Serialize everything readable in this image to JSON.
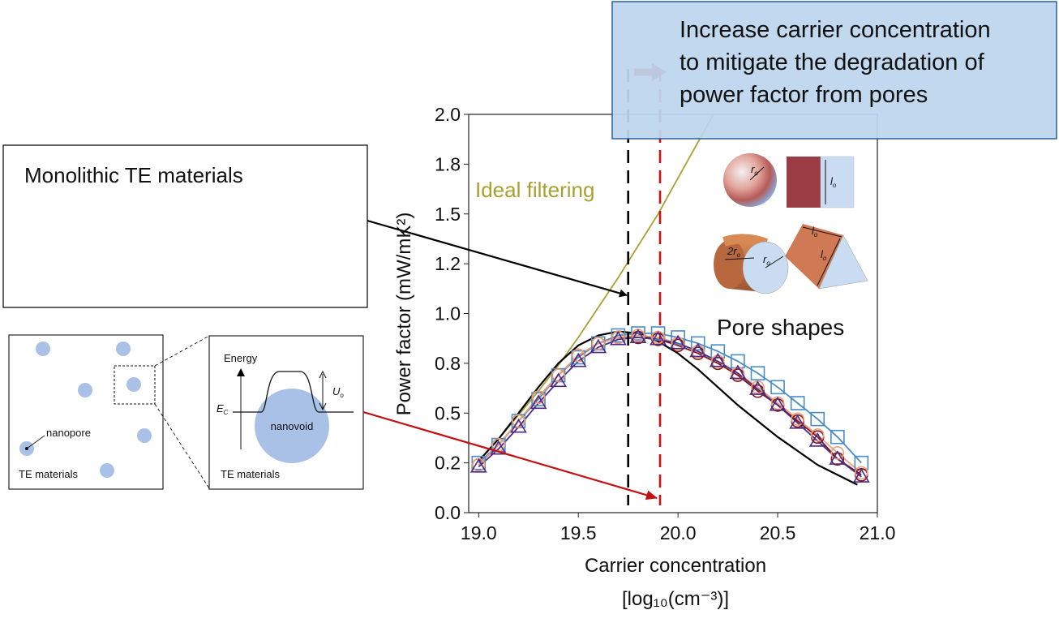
{
  "chart_data": {
    "type": "line",
    "xlabel": "Carrier concentration",
    "xlabel_unit": "[log₁₀(cm⁻³)]",
    "ylabel": "Power factor (mW/mK²)",
    "xlim": [
      18.95,
      21.0
    ],
    "ylim": [
      0.0,
      2.0
    ],
    "x_ticks": [
      "19.0",
      "19.5",
      "20.0",
      "20.5",
      "21.0"
    ],
    "y_ticks": [
      "0.0",
      "0.2",
      "0.5",
      "0.8",
      "1.0",
      "1.2",
      "1.5",
      "1.8",
      "2.0"
    ],
    "grid": false,
    "markers_x": [
      19.0,
      19.1,
      19.2,
      19.3,
      19.4,
      19.5,
      19.6,
      19.7,
      19.8,
      19.9,
      20.0,
      20.1,
      20.2,
      20.3,
      20.4,
      20.5,
      20.6,
      20.7,
      20.8,
      20.92
    ],
    "series": [
      {
        "name": "Ideal filtering",
        "color": "#a8a030",
        "x": [
          19.0,
          19.1,
          19.2,
          19.3,
          19.4,
          19.5,
          19.6,
          19.7,
          19.8,
          19.9,
          20.0,
          20.1,
          20.2
        ],
        "values": [
          0.26,
          0.37,
          0.49,
          0.61,
          0.74,
          0.88,
          1.03,
          1.18,
          1.34,
          1.5,
          1.68,
          1.86,
          2.04
        ]
      },
      {
        "name": "",
        "color": "#000000",
        "x": [
          19.0,
          19.1,
          19.2,
          19.3,
          19.4,
          19.5,
          19.6,
          19.7,
          19.8,
          19.9,
          20.0,
          20.1,
          20.2,
          20.3,
          20.4,
          20.5,
          20.6,
          20.7,
          20.8,
          20.9
        ],
        "values": [
          0.26,
          0.37,
          0.5,
          0.63,
          0.75,
          0.84,
          0.89,
          0.91,
          0.9,
          0.86,
          0.8,
          0.72,
          0.63,
          0.54,
          0.46,
          0.38,
          0.31,
          0.24,
          0.19,
          0.14
        ]
      },
      {
        "name": "",
        "color": "#4a8cc4",
        "marker": "square",
        "x": [
          19.0,
          19.1,
          19.2,
          19.3,
          19.4,
          19.5,
          19.6,
          19.7,
          19.8,
          19.9,
          20.0,
          20.1,
          20.2,
          20.3,
          20.4,
          20.5,
          20.6,
          20.7,
          20.8,
          20.92
        ],
        "values": [
          0.25,
          0.34,
          0.46,
          0.57,
          0.69,
          0.78,
          0.85,
          0.89,
          0.9,
          0.9,
          0.88,
          0.85,
          0.81,
          0.76,
          0.7,
          0.63,
          0.55,
          0.47,
          0.38,
          0.25
        ]
      },
      {
        "name": "",
        "color": "#8b1010",
        "marker": "circle",
        "x": [
          19.0,
          19.1,
          19.2,
          19.3,
          19.4,
          19.5,
          19.6,
          19.7,
          19.8,
          19.9,
          20.0,
          20.1,
          20.2,
          20.3,
          20.4,
          20.5,
          20.6,
          20.7,
          20.8,
          20.92
        ],
        "values": [
          0.24,
          0.34,
          0.46,
          0.58,
          0.69,
          0.79,
          0.85,
          0.88,
          0.88,
          0.87,
          0.84,
          0.8,
          0.75,
          0.69,
          0.61,
          0.54,
          0.46,
          0.38,
          0.27,
          0.19
        ]
      },
      {
        "name": "",
        "color": "#e8a27a",
        "marker": "circle",
        "x": [
          19.0,
          19.1,
          19.2,
          19.3,
          19.4,
          19.5,
          19.6,
          19.7,
          19.8,
          19.9,
          20.0,
          20.1,
          20.2,
          20.3,
          20.4,
          20.5,
          20.6,
          20.7,
          20.8,
          20.92
        ],
        "values": [
          0.24,
          0.34,
          0.46,
          0.58,
          0.69,
          0.79,
          0.85,
          0.88,
          0.89,
          0.88,
          0.85,
          0.81,
          0.76,
          0.7,
          0.63,
          0.55,
          0.47,
          0.39,
          0.3,
          0.2
        ]
      },
      {
        "name": "",
        "color": "#4b2a8a",
        "marker": "triangle",
        "x": [
          19.0,
          19.1,
          19.2,
          19.3,
          19.4,
          19.5,
          19.6,
          19.7,
          19.8,
          19.9,
          20.0,
          20.1,
          20.2,
          20.3,
          20.4,
          20.5,
          20.6,
          20.7,
          20.8,
          20.92
        ],
        "values": [
          0.23,
          0.32,
          0.43,
          0.55,
          0.66,
          0.76,
          0.83,
          0.87,
          0.88,
          0.87,
          0.85,
          0.81,
          0.76,
          0.7,
          0.62,
          0.54,
          0.45,
          0.36,
          0.27,
          0.18
        ]
      }
    ],
    "vlines": [
      {
        "x": 19.75,
        "color": "#000000",
        "style": "dashed"
      },
      {
        "x": 19.91,
        "color": "#cc1111",
        "style": "dashed"
      }
    ]
  },
  "texts": {
    "callout": "Increase carrier concentration to mitigate the degradation of power factor from pores",
    "callout_lines": [
      "Increase carrier concentration",
      "to mitigate the degradation of",
      "power factor from pores"
    ],
    "monolithic": "Monolithic TE materials",
    "ideal_filtering": "Ideal filtering",
    "pore_shapes": "Pore shapes",
    "energy": "Energy",
    "ec": "E",
    "ec_sub": "C",
    "uo": "U",
    "uo_sub": "o",
    "nanovoid": "nanovoid",
    "nanopore": "nanopore",
    "te_materials_left": "TE materials",
    "te_materials_right": "TE materials",
    "ro": "r",
    "ro_sub": "o",
    "lo": "l",
    "lo_sub": "o",
    "two_ro": "2r",
    "two_ro_sub": "o"
  },
  "colors": {
    "callout_fill": "#bcd5ee",
    "callout_border": "#2a5f9e",
    "ideal": "#a8a030",
    "nanopore_fill": "#a9c1e6",
    "arrow_black": "#000000",
    "arrow_red": "#c41010"
  }
}
